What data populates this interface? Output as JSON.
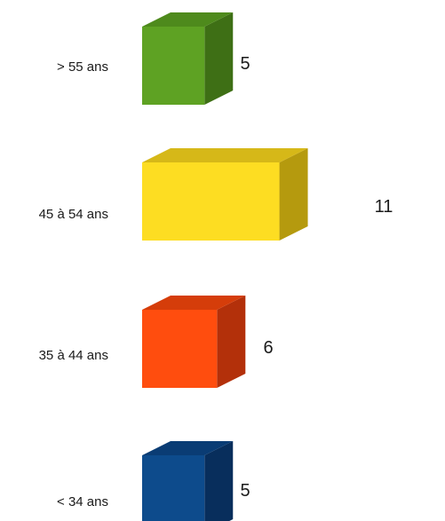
{
  "chart_data": {
    "type": "bar",
    "orientation": "horizontal",
    "style": "3d",
    "title": "",
    "xlabel": "",
    "ylabel": "",
    "categories": [
      "> 55 ans",
      "45 à 54 ans",
      "35 à 44 ans",
      "< 34 ans"
    ],
    "values": [
      5,
      11,
      6,
      5
    ],
    "value_labels": [
      "5",
      "11",
      "6",
      "5"
    ],
    "xlim": [
      0,
      11
    ],
    "grid": false,
    "legend": "none",
    "colors": [
      "#5EA223",
      "#FDDD22",
      "#FF4D0E",
      "#0D4B8C"
    ],
    "side_colors": [
      "#3E6F15",
      "#B59A0E",
      "#B3300A",
      "#082E5C"
    ],
    "top_colors": [
      "#4E8A1C",
      "#D6B818",
      "#D53D0A",
      "#0A3C74"
    ]
  }
}
